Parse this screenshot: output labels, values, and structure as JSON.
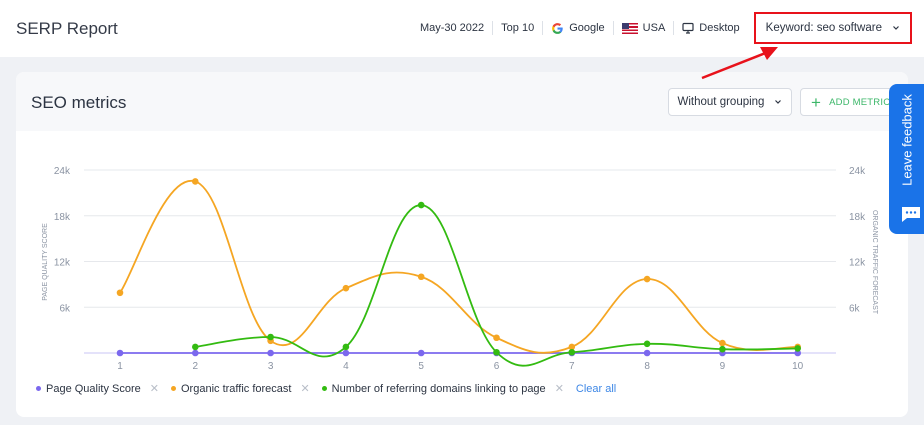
{
  "header": {
    "title": "SERP Report",
    "date": "May-30 2022",
    "top": "Top 10",
    "search_engine": "Google",
    "country": "USA",
    "device": "Desktop",
    "keyword": "Keyword: seo software"
  },
  "card": {
    "title": "SEO metrics",
    "grouping": "Without grouping",
    "add_metrics": "ADD METRICS"
  },
  "feedback": {
    "label": "Leave feedback"
  },
  "legend": {
    "items": [
      {
        "label": "Page Quality Score",
        "color": "#7b68ee"
      },
      {
        "label": "Organic traffic forecast",
        "color": "#f5a623"
      },
      {
        "label": "Number of referring domains linking to page",
        "color": "#33bb11"
      }
    ],
    "clear_all": "Clear all"
  },
  "colors": {
    "accent": "#1a73e8",
    "highlight": "#e8121b",
    "green_button": "#3db76a"
  },
  "chart_data": {
    "type": "line",
    "title": "SEO metrics",
    "xlabel": "",
    "ylabel": "PAGE QUALITY SCORE",
    "y2label": "ORGANIC TRAFFIC FORECAST",
    "categories": [
      "1",
      "2",
      "3",
      "4",
      "5",
      "6",
      "7",
      "8",
      "9",
      "10"
    ],
    "yticks": [
      "24k",
      "18k",
      "12k",
      "6k"
    ],
    "ylim": [
      0,
      24000
    ],
    "grid": true,
    "legend_position": "bottom",
    "series": [
      {
        "name": "Page Quality Score",
        "color": "#7b68ee",
        "values": [
          0,
          0,
          0,
          0,
          0,
          0,
          0,
          0,
          0,
          0
        ]
      },
      {
        "name": "Organic traffic forecast",
        "color": "#f5a623",
        "values": [
          7900,
          22500,
          1600,
          8500,
          10000,
          2000,
          800,
          9700,
          1300,
          800
        ]
      },
      {
        "name": "Number of referring domains linking to page",
        "color": "#33bb11",
        "values": [
          null,
          800,
          2100,
          800,
          19400,
          100,
          100,
          1200,
          500,
          600
        ]
      }
    ]
  }
}
